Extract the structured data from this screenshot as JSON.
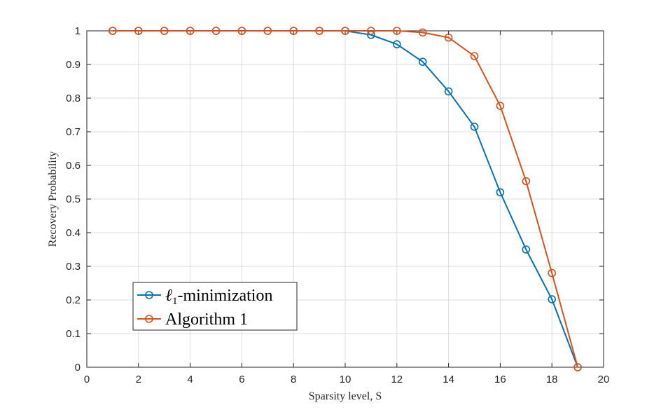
{
  "chart_data": {
    "type": "line",
    "xlabel": "Sparsity level, S",
    "ylabel": "Recovery Probability",
    "xlim": [
      0,
      20
    ],
    "ylim": [
      0,
      1
    ],
    "xticks": [
      0,
      2,
      4,
      6,
      8,
      10,
      12,
      14,
      16,
      18,
      20
    ],
    "yticks": [
      0,
      0.1,
      0.2,
      0.3,
      0.4,
      0.5,
      0.6,
      0.7,
      0.8,
      0.9,
      1
    ],
    "xtick_labels": [
      "0",
      "2",
      "4",
      "6",
      "8",
      "10",
      "12",
      "14",
      "16",
      "18",
      "20"
    ],
    "ytick_labels": [
      "0",
      "0.1",
      "0.2",
      "0.3",
      "0.4",
      "0.5",
      "0.6",
      "0.7",
      "0.8",
      "0.9",
      "1"
    ],
    "grid": true,
    "legend_position": "bottom-left",
    "x": [
      1,
      2,
      3,
      4,
      5,
      6,
      7,
      8,
      9,
      10,
      11,
      12,
      13,
      14,
      15,
      16,
      17,
      18,
      19
    ],
    "series": [
      {
        "name": "ℓ1-minimization",
        "name_main": "ℓ",
        "name_sub": "1",
        "name_rest": "-minimization",
        "color": "#0072BD",
        "marker": "circle",
        "values": [
          1,
          1,
          1,
          1,
          1,
          1,
          1,
          1,
          1,
          1,
          0.988,
          0.96,
          0.908,
          0.82,
          0.715,
          0.52,
          0.35,
          0.202,
          0
        ]
      },
      {
        "name": "Algorithm 1",
        "color": "#D95319",
        "marker": "circle",
        "values": [
          1,
          1,
          1,
          1,
          1,
          1,
          1,
          1,
          1,
          1,
          1,
          1,
          0.995,
          0.98,
          0.925,
          0.777,
          0.553,
          0.28,
          0
        ]
      }
    ]
  }
}
